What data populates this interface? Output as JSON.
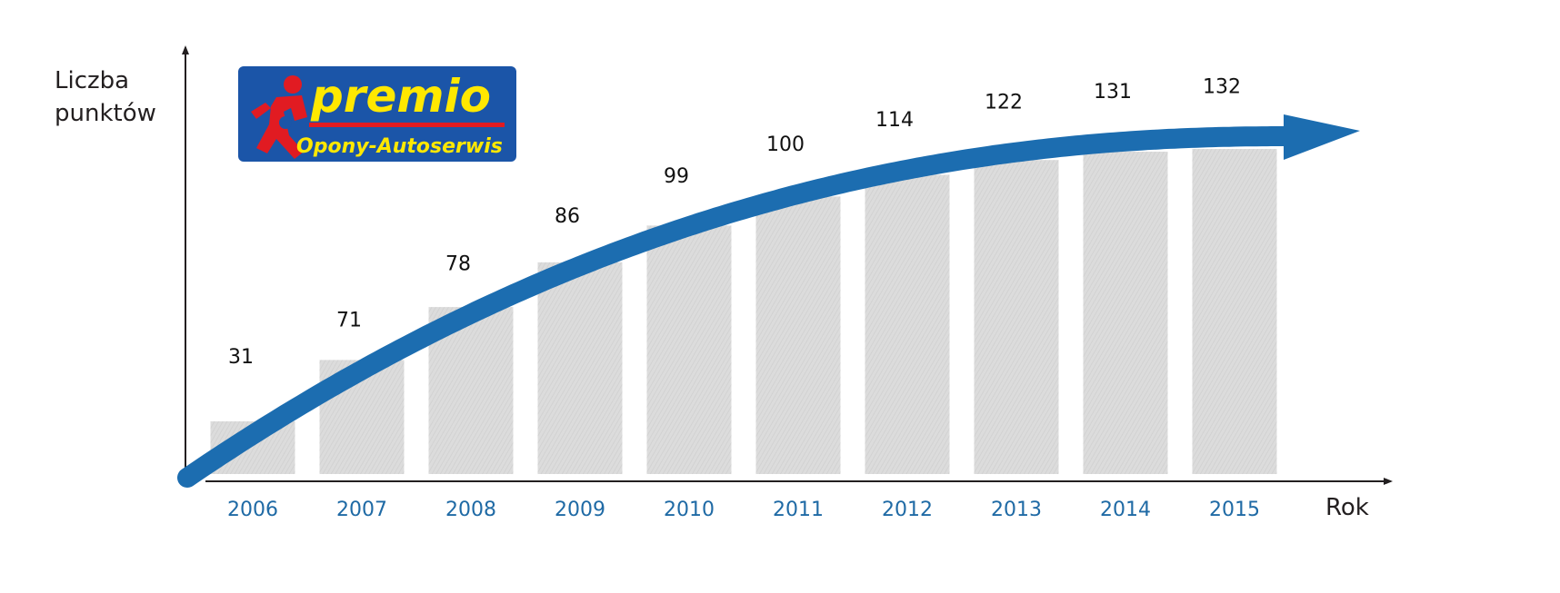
{
  "logo": {
    "brand": "premio",
    "tagline": "Opony-Autoserwis",
    "colors": {
      "background": "#1b55a8",
      "brand_text": "#ffe800",
      "figure": "#e11b22",
      "tagline_text": "#ffe800"
    }
  },
  "chart_data": {
    "type": "bar",
    "ylabel": "Liczba punktów",
    "xlabel": "Rok",
    "categories": [
      "2006",
      "2007",
      "2008",
      "2009",
      "2010",
      "2011",
      "2012",
      "2013",
      "2014",
      "2015"
    ],
    "values": [
      31,
      71,
      78,
      86,
      99,
      100,
      114,
      122,
      131,
      132
    ],
    "value_labels": [
      "31",
      "71",
      "78",
      "86",
      "99",
      "100",
      "114",
      "122",
      "131",
      "132"
    ],
    "highlight": {
      "category": "2011",
      "color": "#e31e24"
    },
    "grid": false,
    "legend": "none",
    "colors": {
      "bars": "#d9d9d9",
      "trend_arrow": "#1c6db0",
      "tick_labels": "#1f6aa5",
      "axes": "#231f20",
      "value_labels": "#111111"
    }
  }
}
